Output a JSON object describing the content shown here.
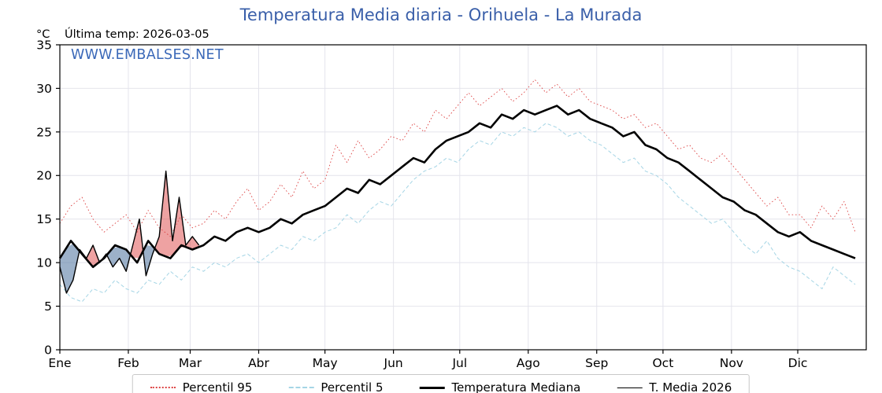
{
  "header": {
    "title": "Temperatura Media diaria - Orihuela - La Murada",
    "unit_label": "°C",
    "last_temp_label": "Última temp: 2026-03-05",
    "watermark": "WWW.EMBALSES.NET"
  },
  "colors": {
    "title": "#3a5fa9",
    "watermark": "#3a68b8",
    "grid": "#e4e4ec",
    "axis": "#000000",
    "p95": "#dd4444",
    "p5": "#a5d5e5",
    "median": "#000000",
    "current": "#000000",
    "fill_above": "rgba(222,70,70,0.5)",
    "fill_below": "rgba(90,125,165,0.6)"
  },
  "chart_data": {
    "type": "line",
    "title": "Temperatura Media diaria - Orihuela - La Murada",
    "xlabel": "",
    "ylabel": "°C",
    "ylim": [
      0,
      35
    ],
    "x_range": [
      1,
      366
    ],
    "grid": true,
    "legend_position": "bottom",
    "y_ticks": [
      0,
      5,
      10,
      15,
      20,
      25,
      30,
      35
    ],
    "x_months": {
      "labels": [
        "Ene",
        "Feb",
        "Mar",
        "Abr",
        "May",
        "Jun",
        "Jul",
        "Ago",
        "Sep",
        "Oct",
        "Nov",
        "Dic"
      ],
      "start_days": [
        1,
        32,
        60,
        91,
        121,
        152,
        182,
        213,
        244,
        274,
        305,
        335
      ]
    },
    "series": [
      {
        "name": "Percentil 95",
        "role": "p95",
        "style": "dotted",
        "color": "#dd4444",
        "x_start": 1,
        "x_step": 5,
        "values": [
          14.5,
          16.5,
          17.5,
          15,
          13.5,
          14.5,
          15.5,
          13.5,
          16,
          14,
          13,
          15.5,
          14,
          14.5,
          16,
          15,
          17,
          18.5,
          16,
          17,
          19,
          17.5,
          20.5,
          18.5,
          19.5,
          23.5,
          21.5,
          24,
          22,
          23,
          24.5,
          24,
          26,
          25,
          27.5,
          26.5,
          28,
          29.5,
          28,
          29,
          30,
          28.5,
          29.5,
          31,
          29.5,
          30.5,
          29,
          30,
          28.5,
          28,
          27.5,
          26.5,
          27,
          25.5,
          26,
          24.5,
          23,
          23.5,
          22,
          21.5,
          22.5,
          21,
          19.5,
          18,
          16.5,
          17.5,
          15.5,
          15.5,
          14,
          16.5,
          15,
          17,
          13.5
        ]
      },
      {
        "name": "Percentil 5",
        "role": "p5",
        "style": "dashed",
        "color": "#a5d5e5",
        "x_start": 1,
        "x_step": 5,
        "values": [
          7.5,
          6,
          5.5,
          7,
          6.5,
          8,
          7,
          6.5,
          8,
          7.5,
          9,
          8,
          9.5,
          9,
          10,
          9.5,
          10.5,
          11,
          10,
          11,
          12,
          11.5,
          13,
          12.5,
          13.5,
          14,
          15.5,
          14.5,
          16,
          17,
          16.5,
          18,
          19.5,
          20.5,
          21,
          22,
          21.5,
          23,
          24,
          23.5,
          25,
          24.5,
          25.5,
          25,
          26,
          25.5,
          24.5,
          25,
          24,
          23.5,
          22.5,
          21.5,
          22,
          20.5,
          20,
          19,
          17.5,
          16.5,
          15.5,
          14.5,
          15,
          13.5,
          12,
          11,
          12.5,
          10.5,
          9.5,
          9,
          8,
          7,
          9.5,
          8.5,
          7.5
        ]
      },
      {
        "name": "Temperatura Mediana",
        "role": "median",
        "style": "solid-thick",
        "color": "#000000",
        "x_start": 1,
        "x_step": 5,
        "values": [
          10.5,
          12.5,
          11,
          9.5,
          10.5,
          12,
          11.5,
          10,
          12.5,
          11,
          10.5,
          12,
          11.5,
          12,
          13,
          12.5,
          13.5,
          14,
          13.5,
          14,
          15,
          14.5,
          15.5,
          16,
          16.5,
          17.5,
          18.5,
          18,
          19.5,
          19,
          20,
          21,
          22,
          21.5,
          23,
          24,
          24.5,
          25,
          26,
          25.5,
          27,
          26.5,
          27.5,
          27,
          27.5,
          28,
          27,
          27.5,
          26.5,
          26,
          25.5,
          24.5,
          25,
          23.5,
          23,
          22,
          21.5,
          20.5,
          19.5,
          18.5,
          17.5,
          17,
          16,
          15.5,
          14.5,
          13.5,
          13,
          13.5,
          12.5,
          12,
          11.5,
          11,
          10.5
        ]
      },
      {
        "name": "T. Media 2026",
        "role": "current",
        "style": "solid-thin",
        "color": "#000000",
        "fill_above_color": "rgba(222,70,70,0.5)",
        "fill_below_color": "rgba(90,125,165,0.6)",
        "x": [
          1,
          4,
          7,
          10,
          13,
          16,
          19,
          22,
          25,
          28,
          31,
          34,
          37,
          40,
          43,
          46,
          49,
          52,
          55,
          58,
          61,
          64
        ],
        "values": [
          9.5,
          6.5,
          8,
          11.5,
          10.5,
          12,
          10,
          11,
          9.5,
          10.5,
          9,
          12,
          15,
          8.5,
          11,
          13,
          20.5,
          12.5,
          17.5,
          12,
          13,
          12
        ]
      }
    ]
  }
}
